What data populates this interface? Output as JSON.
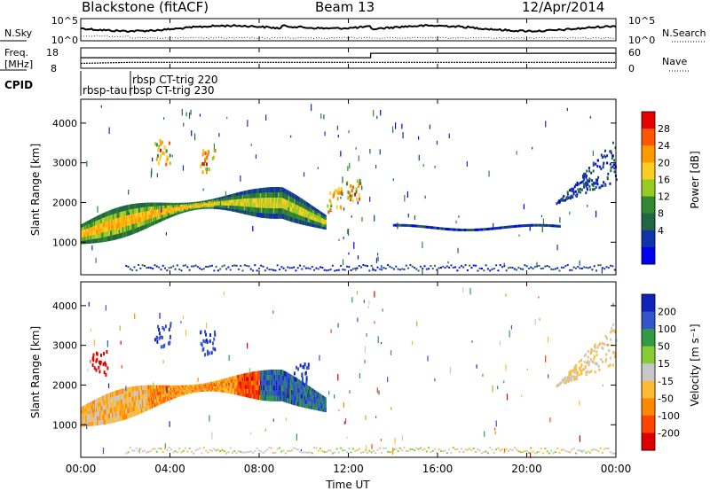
{
  "header": {
    "station": "Blackstone (fitACF)",
    "beam": "Beam 13",
    "date": "12/Apr/2014"
  },
  "chart_data": [
    {
      "type": "line",
      "name": "noise-panel",
      "left_label": "N.Sky",
      "right_label": "N.Search",
      "left_ticks": [
        "10^5",
        "10^0"
      ],
      "right_ticks": [
        "10^5",
        "10^0"
      ],
      "scale": "log"
    },
    {
      "type": "line",
      "name": "frequency-panel",
      "left_label_line1": "Freq.",
      "left_label_line2": "[MHz]",
      "right_label": "Nave",
      "left_ticks": [
        18,
        8
      ],
      "right_ticks": [
        60,
        0
      ],
      "ylim": [
        8,
        18
      ],
      "ylim_right": [
        0,
        60
      ],
      "frequency_series": {
        "x_hours": [
          0,
          2.2,
          24
        ],
        "values_mhz": [
          10.4,
          10.9,
          10.9
        ]
      },
      "nave_series": {
        "x_hours": [
          0,
          13.0,
          13.0,
          24
        ],
        "values": [
          31,
          31,
          44,
          44
        ]
      }
    },
    {
      "type": "table",
      "name": "cpid-panel",
      "label": "CPID",
      "segments": [
        {
          "text": "rbsp-tau",
          "start_hour": 0.0
        },
        {
          "text": "rbsp CT-trig 230",
          "start_hour": 2.1
        },
        {
          "text": "rbsp CT-trig 220",
          "start_hour": 2.2
        }
      ]
    },
    {
      "type": "heatmap",
      "name": "power-panel",
      "ylabel": "Slant Range [km]",
      "yticks": [
        1000,
        2000,
        3000,
        4000
      ],
      "ylim": [
        180,
        4600
      ],
      "colorbar_label": "Power [dB]",
      "colorbar_ticks": [
        28,
        24,
        20,
        16,
        12,
        8,
        4
      ],
      "colorbar_colors": [
        "#e60000",
        "#ff5500",
        "#ff9900",
        "#ffcc22",
        "#99cc22",
        "#338833",
        "#226644",
        "#1133aa",
        "#0000ee"
      ]
    },
    {
      "type": "heatmap",
      "name": "velocity-panel",
      "ylabel": "Slant Range [km]",
      "yticks": [
        1000,
        2000,
        3000,
        4000
      ],
      "ylim": [
        180,
        4600
      ],
      "colorbar_label": "Velocity [m s⁻¹]",
      "colorbar_ticks": [
        200,
        100,
        50,
        15,
        -15,
        -50,
        -100,
        -200
      ],
      "colorbar_colors": [
        "#1122bb",
        "#3355cc",
        "#339944",
        "#88cc33",
        "#c8c8c8",
        "#ffbb33",
        "#ff8800",
        "#ff4400",
        "#dd0000"
      ]
    }
  ],
  "xaxis": {
    "ticks": [
      "00:00",
      "04:00",
      "08:00",
      "12:00",
      "16:00",
      "20:00",
      "00:00"
    ],
    "label": "Time UT",
    "range_hours": [
      0,
      24
    ]
  }
}
